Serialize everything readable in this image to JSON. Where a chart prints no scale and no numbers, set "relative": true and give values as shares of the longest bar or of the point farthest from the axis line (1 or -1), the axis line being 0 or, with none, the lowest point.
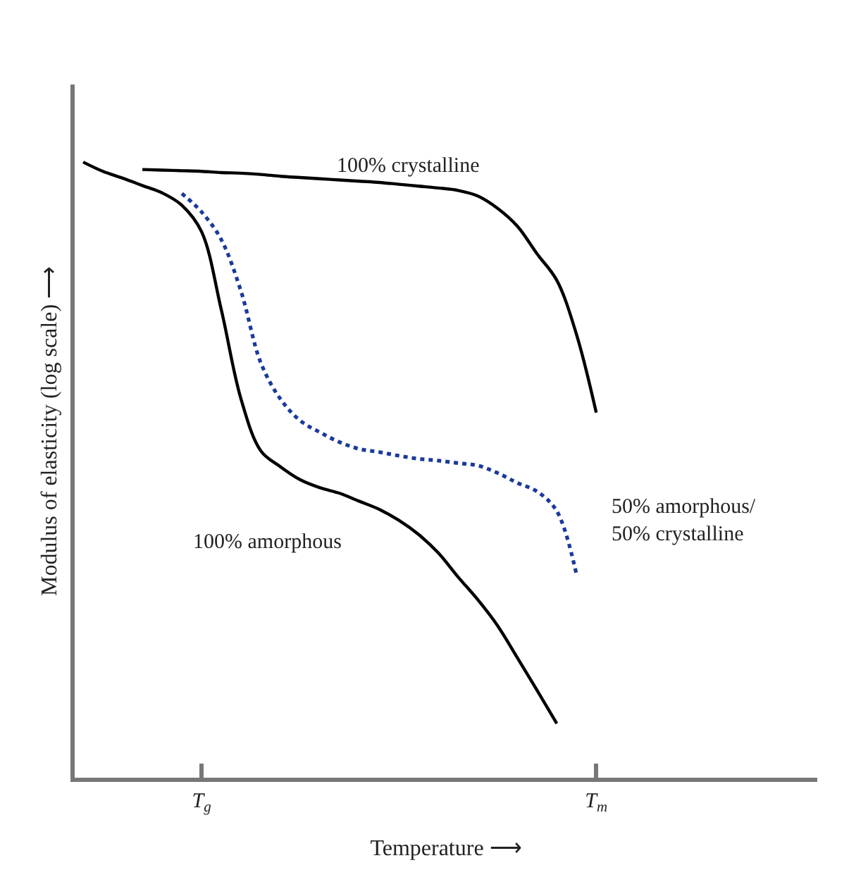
{
  "chart_data": {
    "type": "line",
    "relative": true,
    "xlabel": "Temperature ⟶",
    "ylabel": "Modulus of elasticity (log scale) ⟶",
    "categories": [
      null,
      null,
      null,
      null,
      null,
      null,
      null,
      "T$_{g}$",
      null,
      null,
      null,
      null,
      null,
      null,
      null,
      null,
      null,
      null,
      null,
      null,
      null,
      null,
      null,
      null,
      null,
      null,
      null,
      "T$_{m}$",
      null,
      null,
      null,
      null,
      null,
      null,
      null,
      null,
      null,
      null,
      null
    ],
    "series": [
      {
        "color": "#000000",
        "line_style": "solid",
        "values": [
          null,
          1.0,
          0.985,
          0.974,
          0.962,
          0.95,
          0.93,
          0.887,
          0.76,
          0.615,
          0.531,
          0.505,
          0.484,
          0.471,
          0.462,
          0.449,
          0.436,
          0.418,
          0.395,
          0.365,
          0.326,
          0.289,
          0.247,
          0.195,
          0.142,
          0.088,
          null,
          null,
          null,
          null,
          null,
          null,
          null,
          null,
          null,
          null,
          null,
          null,
          null
        ]
      },
      {
        "color": "#000000",
        "line_style": "solid",
        "values": [
          null,
          null,
          null,
          null,
          0.988,
          0.987,
          0.986,
          0.985,
          0.983,
          0.982,
          0.98,
          0.977,
          0.975,
          0.973,
          0.971,
          0.969,
          0.967,
          0.964,
          0.961,
          0.958,
          0.954,
          0.945,
          0.925,
          0.896,
          0.851,
          0.808,
          0.72,
          0.593,
          null,
          null,
          null,
          null,
          null,
          null,
          null,
          null,
          null,
          null,
          null
        ]
      },
      {
        "color": "#1a3a9a",
        "line_style": "dotted",
        "values": [
          null,
          null,
          null,
          null,
          null,
          null,
          0.949,
          0.919,
          0.874,
          0.79,
          0.674,
          0.615,
          0.58,
          0.561,
          0.545,
          0.534,
          0.529,
          0.523,
          0.518,
          0.515,
          0.511,
          0.507,
          0.495,
          0.479,
          0.465,
          0.433,
          0.33,
          null,
          null,
          null,
          null,
          null,
          null,
          null,
          null,
          null,
          null,
          null,
          null
        ]
      }
    ],
    "annotations": [
      "100% crystalline",
      "100% amorphous",
      "50% amorphous/\n50% crystalline"
    ],
    "marker": "none"
  }
}
